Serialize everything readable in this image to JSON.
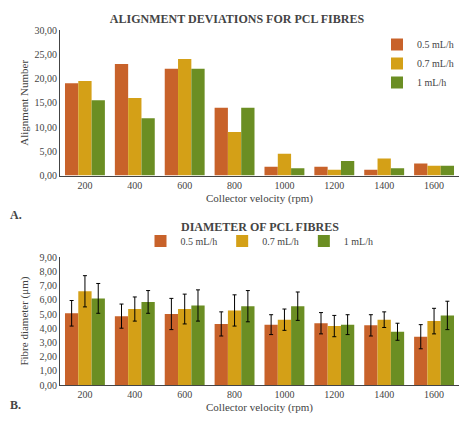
{
  "chart_data": [
    {
      "type": "bar",
      "title": "ALIGNMENT DEVIATIONS FOR PCL FIBRES",
      "xlabel": "Collector velocity (rpm)",
      "ylabel": "Alignment Number",
      "categories": [
        200,
        400,
        600,
        800,
        1000,
        1200,
        1400,
        1600
      ],
      "series": [
        {
          "name": "0.5 mL/h",
          "color": "#C8622A",
          "values": [
            19.0,
            23.0,
            22.0,
            14.0,
            1.8,
            1.8,
            1.2,
            2.5
          ]
        },
        {
          "name": "0.7 mL/h",
          "color": "#D4A017",
          "values": [
            19.5,
            16.0,
            24.0,
            9.0,
            4.5,
            1.2,
            3.5,
            2.0
          ]
        },
        {
          "name": "1 mL/h",
          "color": "#6B8E23",
          "values": [
            15.5,
            11.8,
            22.0,
            14.0,
            1.5,
            3.0,
            1.5,
            2.0
          ]
        }
      ],
      "ylim": [
        0,
        30
      ],
      "yticks": [
        {
          "value": 0,
          "label": "0,00"
        },
        {
          "value": 5,
          "label": "5,00"
        },
        {
          "value": 10,
          "label": "10,00"
        },
        {
          "value": 15,
          "label": "15,00"
        },
        {
          "value": 20,
          "label": "20,00"
        },
        {
          "value": 25,
          "label": "25,00"
        },
        {
          "value": 30,
          "label": "30,00"
        }
      ],
      "grid": false,
      "legend": "upper right",
      "annotations": [
        "A."
      ]
    },
    {
      "type": "bar",
      "title": "DIAMETER OF PCL FIBRES",
      "xlabel": "Collector velocity (rpm)",
      "ylabel": "Fibre diameter (μm)",
      "categories": [
        200,
        400,
        600,
        800,
        1000,
        1200,
        1400,
        1600
      ],
      "series": [
        {
          "name": "0.5 mL/h",
          "color": "#C8622A",
          "values": [
            5.05,
            4.85,
            5.0,
            4.3,
            4.25,
            4.35,
            4.2,
            3.4
          ],
          "error": [
            0.9,
            0.85,
            1.1,
            0.85,
            0.7,
            0.75,
            0.75,
            0.85
          ]
        },
        {
          "name": "0.7 mL/h",
          "color": "#D4A017",
          "values": [
            6.6,
            5.35,
            5.35,
            5.25,
            4.6,
            4.15,
            4.6,
            4.5
          ],
          "error": [
            1.1,
            0.85,
            1.05,
            1.1,
            0.75,
            0.75,
            0.55,
            0.9
          ]
        },
        {
          "name": "1 mL/h",
          "color": "#6B8E23",
          "values": [
            6.1,
            5.85,
            5.6,
            5.55,
            5.55,
            4.25,
            3.75,
            4.9
          ],
          "error": [
            1.05,
            0.8,
            1.1,
            1.1,
            1.0,
            0.7,
            0.6,
            1.0
          ]
        }
      ],
      "ylim": [
        0,
        9
      ],
      "yticks": [
        {
          "value": 0,
          "label": "0,00"
        },
        {
          "value": 1,
          "label": "1,00"
        },
        {
          "value": 2,
          "label": "2,00"
        },
        {
          "value": 3,
          "label": "3,00"
        },
        {
          "value": 4,
          "label": "4,00"
        },
        {
          "value": 5,
          "label": "5,00"
        },
        {
          "value": 6,
          "label": "6,00"
        },
        {
          "value": 7,
          "label": "7,00"
        },
        {
          "value": 8,
          "label": "8,00"
        },
        {
          "value": 9,
          "label": "9,00"
        }
      ],
      "grid": false,
      "legend": "upper center",
      "annotations": [
        "B."
      ]
    }
  ]
}
